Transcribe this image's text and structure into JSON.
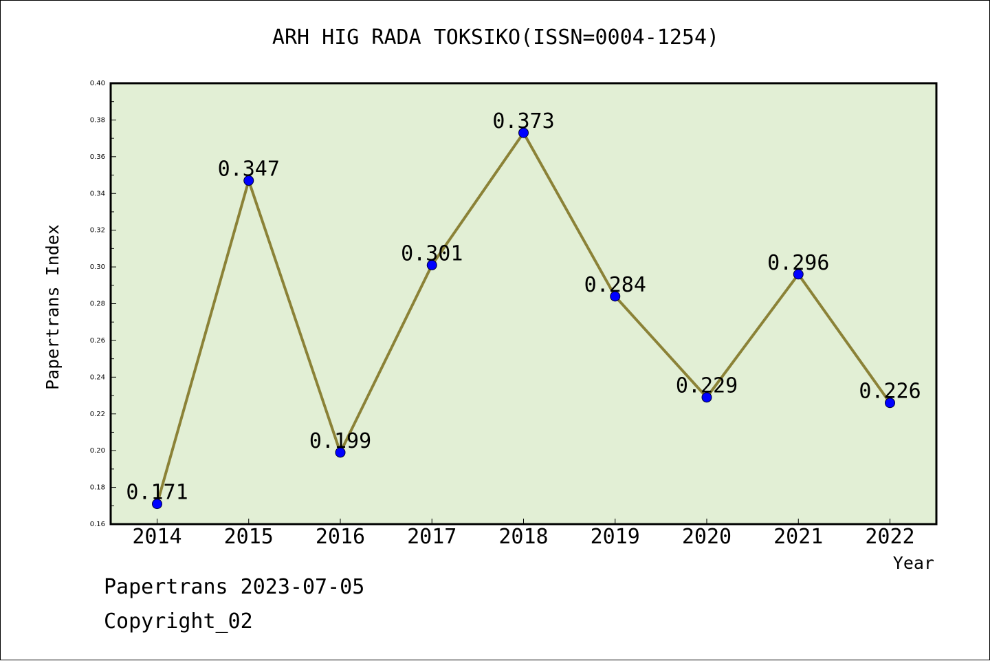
{
  "chart_data": {
    "type": "line",
    "title": "ARH HIG RADA TOKSIKO(ISSN=0004-1254)",
    "xlabel": "Year",
    "ylabel": "Papertrans Index",
    "categories": [
      "2014",
      "2015",
      "2016",
      "2017",
      "2018",
      "2019",
      "2020",
      "2021",
      "2022"
    ],
    "values": [
      0.171,
      0.347,
      0.199,
      0.301,
      0.373,
      0.284,
      0.229,
      0.296,
      0.226
    ],
    "data_labels": [
      "0.171",
      "0.347",
      "0.199",
      "0.301",
      "0.373",
      "0.284",
      "0.229",
      "0.296",
      "0.226"
    ],
    "ylim": [
      0.16,
      0.4
    ],
    "yticks": [
      "0.16",
      "0.18",
      "0.20",
      "0.22",
      "0.24",
      "0.26",
      "0.28",
      "0.30",
      "0.32",
      "0.34",
      "0.36",
      "0.38",
      "0.40"
    ],
    "grid": false,
    "colors": {
      "plot_background": "#e2efd5",
      "line": "#8b8237",
      "marker": "#0000ff"
    }
  },
  "footer": {
    "date_line": "Papertrans 2023-07-05",
    "copyright_line": "Copyright_02"
  }
}
